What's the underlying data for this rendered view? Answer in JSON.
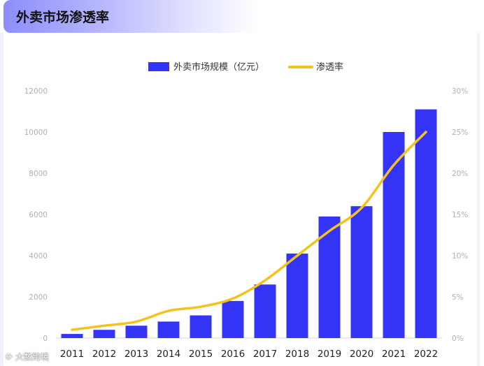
{
  "header": {
    "title": "外卖市场渗透率"
  },
  "watermark": "大数跨境",
  "chart_data": {
    "type": "bar",
    "title": "外卖市场渗透率",
    "categories": [
      "2011",
      "2012",
      "2013",
      "2014",
      "2015",
      "2016",
      "2017",
      "2018",
      "2019",
      "2020",
      "2021",
      "2022"
    ],
    "series": [
      {
        "name": "外卖市场规模（亿元）",
        "type": "bar",
        "axis": "left",
        "color": "#3334f5",
        "values": [
          200,
          400,
          600,
          800,
          1100,
          1800,
          2600,
          4100,
          5900,
          6400,
          10000,
          11100
        ]
      },
      {
        "name": "渗透率",
        "type": "line",
        "axis": "right",
        "color": "#f5c21b",
        "values": [
          1.0,
          1.5,
          2.0,
          3.3,
          3.8,
          4.8,
          7.0,
          10.0,
          13.0,
          15.8,
          21.0,
          25.0
        ]
      }
    ],
    "y_left": {
      "min": 0,
      "max": 12000,
      "ticks": [
        "0",
        "2000",
        "4000",
        "6000",
        "8000",
        "10000",
        "12000"
      ]
    },
    "y_right": {
      "min": 0,
      "max": 30,
      "ticks": [
        "0%",
        "5%",
        "10%",
        "15%",
        "20%",
        "25%",
        "30%"
      ]
    },
    "legend_position": "top-center",
    "grid": false
  }
}
